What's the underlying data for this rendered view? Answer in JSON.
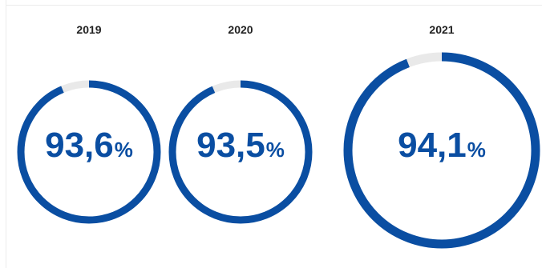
{
  "colors": {
    "fill": "#0a4ea2",
    "track": "#e9e9e9",
    "label": "#222222"
  },
  "chart_data": {
    "type": "donut",
    "categories": [
      "2019",
      "2020",
      "2021"
    ],
    "values": [
      93.6,
      93.5,
      94.1
    ],
    "unit": "%",
    "value_labels": [
      "93,6",
      "93,5",
      "94,1"
    ],
    "percent_sign": "%"
  }
}
